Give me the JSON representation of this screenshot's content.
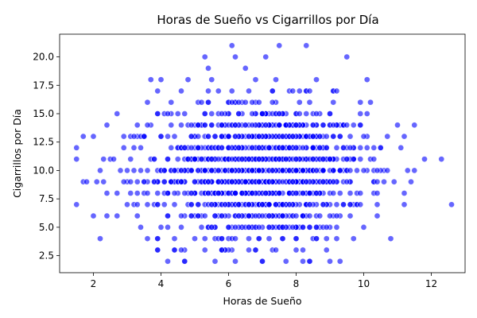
{
  "chart_data": {
    "type": "scatter",
    "title": "Horas de Sueño vs Cigarrillos por Día",
    "xlabel": "Horas de Sueño",
    "ylabel": "Cigarrillos por Día",
    "xlim": [
      1.0,
      13.0
    ],
    "ylim": [
      1.0,
      22.0
    ],
    "xticks": [
      2,
      4,
      6,
      8,
      10,
      12
    ],
    "yticks": [
      2.5,
      5.0,
      7.5,
      10.0,
      12.5,
      15.0,
      17.5,
      20.0
    ],
    "xtick_labels": [
      "2",
      "4",
      "6",
      "8",
      "10",
      "12"
    ],
    "ytick_labels": [
      "2.5",
      "5.0",
      "7.5",
      "10.0",
      "12.5",
      "15.0",
      "17.5",
      "20.0"
    ],
    "grid": false,
    "point_color": "#0000ff",
    "points_count": 1500,
    "points": [
      [
        1.5,
        12
      ],
      [
        1.5,
        7
      ],
      [
        1.7,
        13
      ],
      [
        1.7,
        9
      ],
      [
        1.8,
        9
      ],
      [
        2.0,
        13
      ],
      [
        2.0,
        6
      ],
      [
        2.1,
        9
      ],
      [
        2.2,
        10
      ],
      [
        2.3,
        9
      ],
      [
        2.4,
        14
      ],
      [
        2.4,
        6
      ],
      [
        2.4,
        8
      ],
      [
        2.5,
        11
      ],
      [
        2.6,
        11
      ],
      [
        2.7,
        15
      ],
      [
        2.7,
        8
      ],
      [
        2.7,
        6
      ],
      [
        2.8,
        10
      ],
      [
        2.9,
        12
      ],
      [
        2.9,
        13
      ],
      [
        3.0,
        9
      ],
      [
        3.0,
        7
      ],
      [
        3.1,
        11
      ],
      [
        3.1,
        8
      ],
      [
        3.2,
        12
      ],
      [
        3.3,
        14
      ],
      [
        3.3,
        6
      ],
      [
        3.4,
        10
      ],
      [
        3.4,
        5
      ],
      [
        3.5,
        13
      ],
      [
        3.5,
        9
      ],
      [
        3.6,
        16
      ],
      [
        3.6,
        4
      ],
      [
        3.7,
        18
      ],
      [
        3.7,
        11
      ],
      [
        3.8,
        7
      ],
      [
        3.9,
        3
      ],
      [
        3.9,
        17
      ],
      [
        4.0,
        18
      ],
      [
        4.0,
        13
      ],
      [
        4.0,
        5
      ],
      [
        4.1,
        15
      ],
      [
        4.1,
        9
      ],
      [
        4.2,
        2
      ],
      [
        4.3,
        16
      ],
      [
        4.4,
        3
      ],
      [
        4.5,
        8
      ],
      [
        4.6,
        17
      ],
      [
        4.7,
        2
      ],
      [
        4.7,
        12
      ],
      [
        4.8,
        18
      ],
      [
        4.9,
        6
      ],
      [
        5.0,
        4
      ],
      [
        5.1,
        16
      ],
      [
        5.2,
        14
      ],
      [
        5.3,
        20
      ],
      [
        5.3,
        3
      ],
      [
        5.4,
        19
      ],
      [
        5.5,
        18
      ],
      [
        5.6,
        4
      ],
      [
        5.7,
        17
      ],
      [
        5.8,
        3
      ],
      [
        5.9,
        9
      ],
      [
        6.0,
        16
      ],
      [
        6.1,
        21
      ],
      [
        6.1,
        3
      ],
      [
        6.2,
        20
      ],
      [
        6.3,
        13
      ],
      [
        6.4,
        5
      ],
      [
        6.5,
        19
      ],
      [
        6.6,
        3
      ],
      [
        6.7,
        10
      ],
      [
        6.8,
        16
      ],
      [
        6.9,
        4
      ],
      [
        7.0,
        2
      ],
      [
        7.1,
        20
      ],
      [
        7.2,
        15
      ],
      [
        7.3,
        8
      ],
      [
        7.4,
        18
      ],
      [
        7.5,
        21
      ],
      [
        7.6,
        12
      ],
      [
        7.7,
        2
      ],
      [
        7.8,
        17
      ],
      [
        7.9,
        6
      ],
      [
        8.0,
        4
      ],
      [
        8.1,
        14
      ],
      [
        8.2,
        3
      ],
      [
        8.3,
        21
      ],
      [
        8.4,
        16
      ],
      [
        8.5,
        11
      ],
      [
        8.6,
        4
      ],
      [
        8.7,
        5
      ],
      [
        8.8,
        13
      ],
      [
        8.9,
        3
      ],
      [
        9.0,
        9
      ],
      [
        9.1,
        17
      ],
      [
        9.2,
        5
      ],
      [
        9.3,
        2
      ],
      [
        9.4,
        12
      ],
      [
        9.5,
        10
      ],
      [
        9.6,
        6
      ],
      [
        9.7,
        11
      ],
      [
        9.8,
        8
      ],
      [
        9.9,
        14
      ],
      [
        10.0,
        5
      ],
      [
        10.1,
        18
      ],
      [
        10.1,
        13
      ],
      [
        10.2,
        11
      ],
      [
        10.3,
        9
      ],
      [
        10.4,
        7
      ],
      [
        10.5,
        12
      ],
      [
        10.6,
        10
      ],
      [
        10.7,
        13
      ],
      [
        10.8,
        4
      ],
      [
        10.9,
        9
      ],
      [
        11.0,
        14
      ],
      [
        11.1,
        12
      ],
      [
        11.2,
        13
      ],
      [
        11.3,
        10
      ],
      [
        12.3,
        11
      ],
      [
        12.6,
        7
      ]
    ]
  }
}
